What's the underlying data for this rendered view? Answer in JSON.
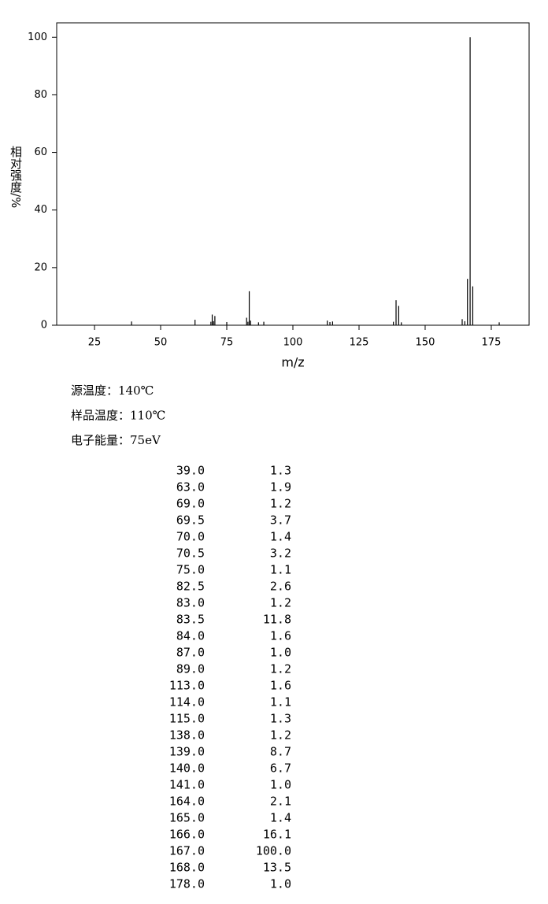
{
  "chart_data": {
    "type": "stem",
    "xlabel": "m/z",
    "ylabel": "相对强度/%",
    "x": [
      39,
      63,
      69,
      69.5,
      70,
      70.5,
      75,
      82.5,
      83,
      83.5,
      84,
      87,
      89,
      113,
      114,
      115,
      138,
      139,
      140,
      141,
      164,
      165,
      166,
      167,
      168,
      178
    ],
    "values": [
      1.3,
      1.9,
      1.2,
      3.7,
      1.4,
      3.2,
      1.1,
      2.6,
      1.2,
      11.8,
      1.6,
      1.0,
      1.2,
      1.6,
      1.1,
      1.3,
      1.2,
      8.7,
      6.7,
      1.0,
      2.1,
      1.4,
      16.1,
      100.0,
      13.5,
      1.0
    ],
    "color": "#000000",
    "xlim": [
      10.7,
      189.3
    ],
    "xticks": [
      25,
      50,
      75,
      100,
      125,
      150,
      175
    ],
    "ylim": [
      0,
      105
    ],
    "yticks": [
      0,
      20,
      40,
      60,
      80,
      100
    ]
  },
  "conditions": [
    "源温度：140℃",
    "样品温度：110℃",
    "电子能量：75eV"
  ],
  "peaks": {
    "rows": [
      [
        "39.0",
        "1.3"
      ],
      [
        "63.0",
        "1.9"
      ],
      [
        "69.0",
        "1.2"
      ],
      [
        "69.5",
        "3.7"
      ],
      [
        "70.0",
        "1.4"
      ],
      [
        "70.5",
        "3.2"
      ],
      [
        "75.0",
        "1.1"
      ],
      [
        "82.5",
        "2.6"
      ],
      [
        "83.0",
        "1.2"
      ],
      [
        "83.5",
        "11.8"
      ],
      [
        "84.0",
        "1.6"
      ],
      [
        "87.0",
        "1.0"
      ],
      [
        "89.0",
        "1.2"
      ],
      [
        "113.0",
        "1.6"
      ],
      [
        "114.0",
        "1.1"
      ],
      [
        "115.0",
        "1.3"
      ],
      [
        "138.0",
        "1.2"
      ],
      [
        "139.0",
        "8.7"
      ],
      [
        "140.0",
        "6.7"
      ],
      [
        "141.0",
        "1.0"
      ],
      [
        "164.0",
        "2.1"
      ],
      [
        "165.0",
        "1.4"
      ],
      [
        "166.0",
        "16.1"
      ],
      [
        "167.0",
        "100.0"
      ],
      [
        "168.0",
        "13.5"
      ],
      [
        "178.0",
        "1.0"
      ]
    ]
  }
}
